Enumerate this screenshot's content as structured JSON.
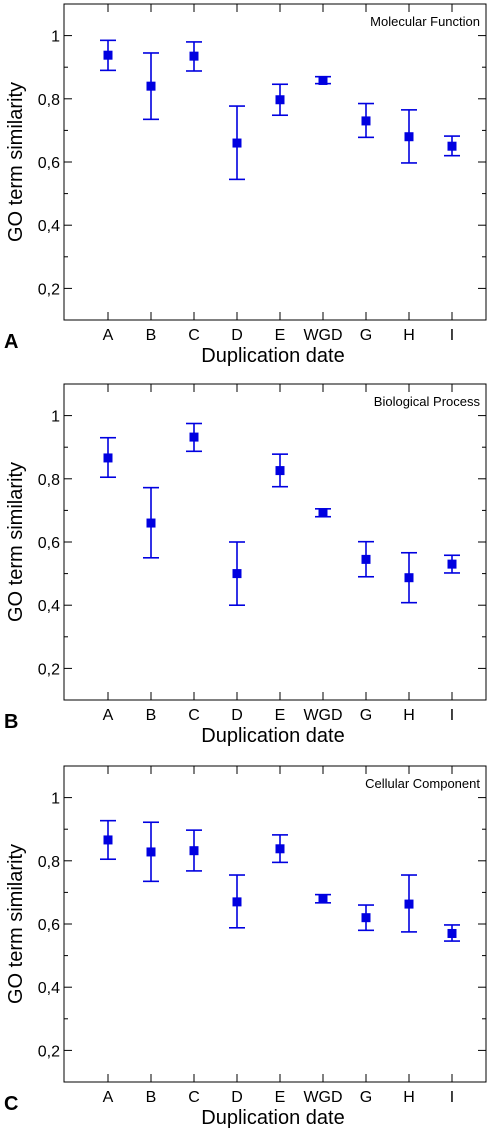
{
  "chart_data": [
    {
      "type": "scatter",
      "panel_label": "A",
      "title": "Molecular Function",
      "xlabel": "Duplication date",
      "ylabel": "GO term similarity",
      "categories": [
        "A",
        "B",
        "C",
        "D",
        "E",
        "WGD",
        "G",
        "H",
        "I"
      ],
      "values": [
        0.938,
        0.84,
        0.935,
        0.66,
        0.797,
        0.858,
        0.73,
        0.68,
        0.65
      ],
      "err_low": [
        0.89,
        0.735,
        0.888,
        0.545,
        0.748,
        0.848,
        0.678,
        0.597,
        0.62
      ],
      "err_high": [
        0.985,
        0.945,
        0.98,
        0.777,
        0.846,
        0.87,
        0.785,
        0.765,
        0.682
      ],
      "ylim": [
        0.1,
        1.1
      ],
      "yticks": [
        "0,2",
        "0,4",
        "0,6",
        "0,8",
        "1"
      ],
      "ytick_values": [
        0.2,
        0.4,
        0.6,
        0.8,
        1.0
      ],
      "marker_color": "#0000e0",
      "grid": false,
      "title_position": "top-right"
    },
    {
      "type": "scatter",
      "panel_label": "B",
      "title": "Biological Process",
      "xlabel": "Duplication date",
      "ylabel": "GO term similarity",
      "categories": [
        "A",
        "B",
        "C",
        "D",
        "E",
        "WGD",
        "G",
        "H",
        "I"
      ],
      "values": [
        0.866,
        0.66,
        0.932,
        0.5,
        0.826,
        0.692,
        0.545,
        0.487,
        0.53
      ],
      "err_low": [
        0.805,
        0.55,
        0.887,
        0.4,
        0.775,
        0.68,
        0.49,
        0.408,
        0.502
      ],
      "err_high": [
        0.93,
        0.772,
        0.975,
        0.6,
        0.878,
        0.705,
        0.601,
        0.566,
        0.558
      ],
      "ylim": [
        0.1,
        1.1
      ],
      "yticks": [
        "0,2",
        "0,4",
        "0,6",
        "0,8",
        "1"
      ],
      "ytick_values": [
        0.2,
        0.4,
        0.6,
        0.8,
        1.0
      ],
      "marker_color": "#0000e0",
      "grid": false,
      "title_position": "top-right"
    },
    {
      "type": "scatter",
      "panel_label": "C",
      "title": "Cellular Component",
      "xlabel": "Duplication date",
      "ylabel": "GO term similarity",
      "categories": [
        "A",
        "B",
        "C",
        "D",
        "E",
        "WGD",
        "G",
        "H",
        "I"
      ],
      "values": [
        0.866,
        0.828,
        0.832,
        0.67,
        0.838,
        0.68,
        0.62,
        0.663,
        0.57
      ],
      "err_low": [
        0.805,
        0.735,
        0.768,
        0.588,
        0.795,
        0.667,
        0.58,
        0.575,
        0.546
      ],
      "err_high": [
        0.927,
        0.922,
        0.897,
        0.755,
        0.882,
        0.693,
        0.66,
        0.755,
        0.597
      ],
      "ylim": [
        0.1,
        1.1
      ],
      "yticks": [
        "0,2",
        "0,4",
        "0,6",
        "0,8",
        "1"
      ],
      "ytick_values": [
        0.2,
        0.4,
        0.6,
        0.8,
        1.0
      ],
      "marker_color": "#0000e0",
      "grid": false,
      "title_position": "top-right"
    }
  ]
}
